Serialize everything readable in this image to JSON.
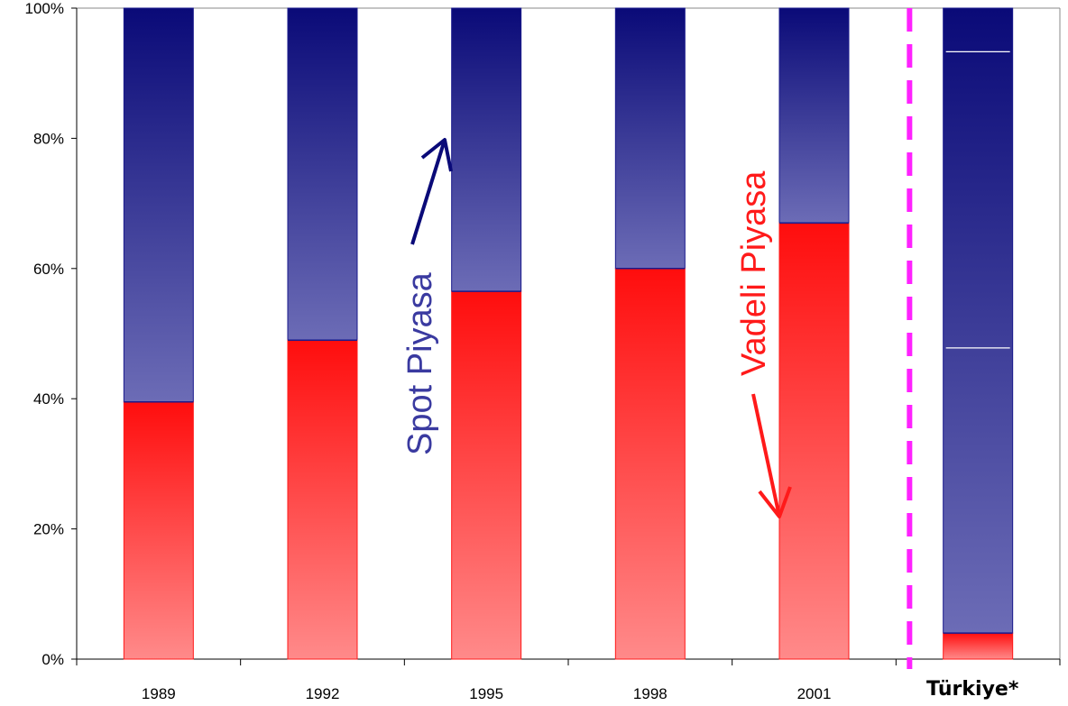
{
  "chart_data": {
    "type": "bar",
    "stacked": "percent",
    "categories": [
      "1989",
      "1992",
      "1995",
      "1998",
      "2001",
      "Türkiye*"
    ],
    "series": [
      {
        "name": "Vadeli Piyasa",
        "values": [
          39.5,
          49,
          56.5,
          60,
          67,
          4
        ],
        "color": "#ff1a1a"
      },
      {
        "name": "Spot Piyasa",
        "values": [
          60.5,
          51,
          43.5,
          40,
          33,
          96
        ],
        "color": "#1a1a8c"
      }
    ],
    "ylim": [
      0,
      100
    ],
    "yticks": [
      "0%",
      "20%",
      "40%",
      "60%",
      "80%",
      "100%"
    ],
    "annotations": {
      "spot": {
        "text": "Spot Piyasa",
        "color": "#3a3aa0"
      },
      "vadeli": {
        "text": "Vadeli Piyasa",
        "color": "#ff1a1a"
      }
    },
    "separator_color": "#ff22ff",
    "grid": false
  }
}
